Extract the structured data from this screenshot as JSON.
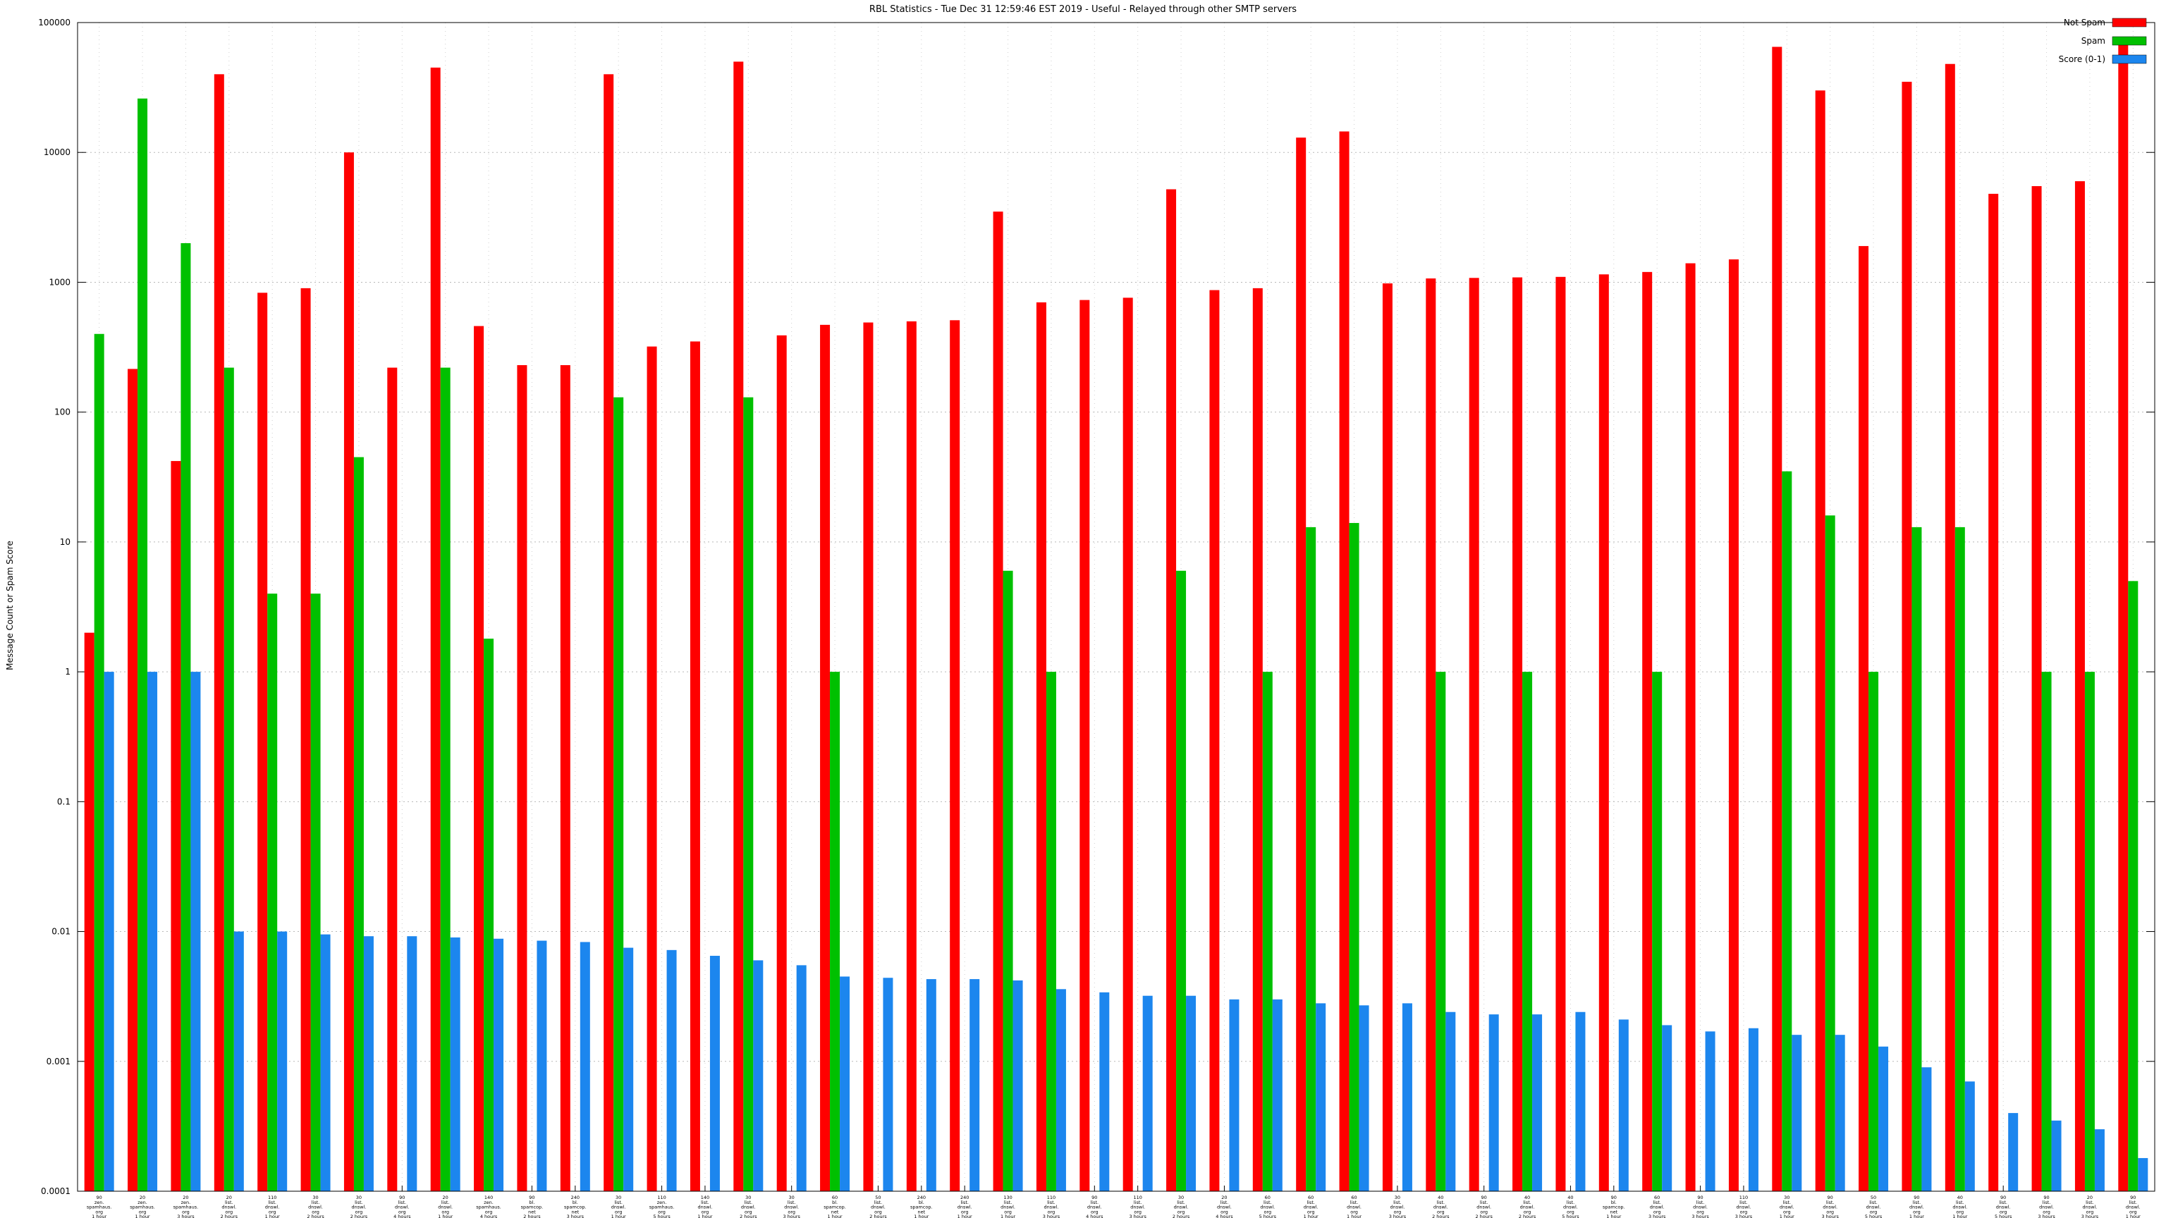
{
  "chart_data": {
    "type": "bar",
    "title": "RBL Statistics - Tue Dec 31 12:59:46 EST 2019 - Useful - Relayed through other SMTP servers",
    "ylabel": "Message Count or Spam Score",
    "yscale": "log",
    "ylim": [
      0.0001,
      100000
    ],
    "ytick_labels": [
      "100000",
      "10000",
      "1000",
      "100",
      "10",
      "1",
      "0.1",
      "0.01",
      "0.001",
      "0.0001"
    ],
    "grid": true,
    "legend_position": "top-right",
    "background": "#ffffff",
    "series": [
      {
        "name": "Not Spam",
        "color": "#ff0000",
        "values": [
          2,
          215,
          42,
          40000,
          830,
          900,
          10000,
          220,
          45000,
          460,
          230,
          230,
          40000,
          320,
          350,
          50000,
          390,
          470,
          490,
          500,
          510,
          3500,
          700,
          730,
          760,
          5200,
          870,
          900,
          13000,
          14500,
          980,
          1070,
          1080,
          1090,
          1100,
          1150,
          1200,
          1400,
          1500,
          65000,
          30000,
          1900,
          35000,
          48000,
          4800,
          5500,
          6000,
          70000
        ]
      },
      {
        "name": "Spam",
        "color": "#00c000",
        "values": [
          400,
          26000,
          2000,
          220,
          4,
          4,
          45,
          0,
          220,
          1.8,
          0,
          0,
          130,
          0,
          0,
          130,
          0,
          1,
          0,
          0,
          0,
          6,
          1,
          0,
          0,
          6,
          0,
          1,
          13,
          14,
          0,
          1,
          0,
          1,
          0,
          0,
          1,
          0,
          0,
          35,
          16,
          1,
          13,
          13,
          0,
          1,
          1,
          5
        ]
      },
      {
        "name": "Score (0-1)",
        "color": "#1c86ee",
        "values": [
          1,
          1,
          1,
          0.01,
          0.01,
          0.0095,
          0.0092,
          0.0092,
          0.009,
          0.0088,
          0.0085,
          0.0083,
          0.0075,
          0.0072,
          0.0065,
          0.006,
          0.0055,
          0.0045,
          0.0044,
          0.0043,
          0.0043,
          0.0042,
          0.0036,
          0.0034,
          0.0032,
          0.0032,
          0.003,
          0.003,
          0.0028,
          0.0027,
          0.0028,
          0.0024,
          0.0023,
          0.0023,
          0.0024,
          0.0021,
          0.0019,
          0.0017,
          0.0018,
          0.0016,
          0.0016,
          0.0013,
          0.0009,
          0.0007,
          0.0004,
          0.00035,
          0.0003,
          0.00018
        ]
      }
    ],
    "categories": [
      [
        "90",
        "zen.",
        "spamhaus.",
        "org",
        "1 hour"
      ],
      [
        "20",
        "zen.",
        "spamhaus.",
        "org",
        "1 hour"
      ],
      [
        "20",
        "zen.",
        "spamhaus.",
        "org",
        "3 hours"
      ],
      [
        "20",
        "list.",
        "dnswl.",
        "org",
        "2 hours"
      ],
      [
        "110",
        "list.",
        "dnswl.",
        "org",
        "1 hour"
      ],
      [
        "30",
        "list.",
        "dnswl.",
        "org",
        "2 hours"
      ],
      [
        "30",
        "list.",
        "dnswl.",
        "org",
        "2 hours"
      ],
      [
        "90",
        "list.",
        "dnswl.",
        "org",
        "4 hours"
      ],
      [
        "20",
        "list.",
        "dnswl.",
        "org",
        "1 hour"
      ],
      [
        "140",
        "zen.",
        "spamhaus.",
        "org",
        "4 hours"
      ],
      [
        "90",
        "bl.",
        "spamcop.",
        "net",
        "2 hours"
      ],
      [
        "240",
        "bl.",
        "spamcop.",
        "net",
        "3 hours"
      ],
      [
        "30",
        "list.",
        "dnswl.",
        "org",
        "1 hour"
      ],
      [
        "110",
        "zen.",
        "spamhaus.",
        "org",
        "5 hours"
      ],
      [
        "140",
        "list.",
        "dnswl.",
        "org",
        "1 hour"
      ],
      [
        "30",
        "list.",
        "dnswl.",
        "org",
        "2 hours"
      ],
      [
        "30",
        "list.",
        "dnswl.",
        "org",
        "3 hours"
      ],
      [
        "60",
        "bl.",
        "spamcop.",
        "net",
        "1 hour"
      ],
      [
        "50",
        "list.",
        "dnswl.",
        "org",
        "2 hours"
      ],
      [
        "240",
        "bl.",
        "spamcop.",
        "net",
        "1 hour"
      ],
      [
        "240",
        "list.",
        "dnswl.",
        "org",
        "1 hour"
      ],
      [
        "130",
        "list.",
        "dnswl.",
        "org",
        "1 hour"
      ],
      [
        "110",
        "list.",
        "dnswl.",
        "org",
        "3 hours"
      ],
      [
        "90",
        "list.",
        "dnswl.",
        "org",
        "4 hours"
      ],
      [
        "110",
        "list.",
        "dnswl.",
        "org",
        "3 hours"
      ],
      [
        "30",
        "list.",
        "dnswl.",
        "org",
        "2 hours"
      ],
      [
        "20",
        "list.",
        "dnswl.",
        "org",
        "4 hours"
      ],
      [
        "60",
        "list.",
        "dnswl.",
        "org",
        "5 hours"
      ],
      [
        "60",
        "list.",
        "dnswl.",
        "org",
        "1 hour"
      ],
      [
        "60",
        "list.",
        "dnswl.",
        "org",
        "1 hour"
      ],
      [
        "30",
        "list.",
        "dnswl.",
        "org",
        "3 hours"
      ],
      [
        "40",
        "list.",
        "dnswl.",
        "org",
        "2 hours"
      ],
      [
        "90",
        "list.",
        "dnswl.",
        "org",
        "2 hours"
      ],
      [
        "40",
        "list.",
        "dnswl.",
        "org",
        "2 hours"
      ],
      [
        "40",
        "list.",
        "dnswl.",
        "org",
        "5 hours"
      ],
      [
        "90",
        "bl.",
        "spamcop.",
        "net",
        "1 hour"
      ],
      [
        "60",
        "list.",
        "dnswl.",
        "org",
        "3 hours"
      ],
      [
        "90",
        "list.",
        "dnswl.",
        "org",
        "3 hours"
      ],
      [
        "110",
        "list.",
        "dnswl.",
        "org",
        "3 hours"
      ],
      [
        "30",
        "list.",
        "dnswl.",
        "org",
        "1 hour"
      ],
      [
        "90",
        "list.",
        "dnswl.",
        "org",
        "3 hours"
      ],
      [
        "50",
        "list.",
        "dnswl.",
        "org",
        "5 hours"
      ],
      [
        "90",
        "list.",
        "dnswl.",
        "org",
        "1 hour"
      ],
      [
        "40",
        "list.",
        "dnswl.",
        "org",
        "1 hour"
      ],
      [
        "90",
        "list.",
        "dnswl.",
        "org",
        "5 hours"
      ],
      [
        "90",
        "list.",
        "dnswl.",
        "org",
        "3 hours"
      ],
      [
        "20",
        "list.",
        "dnswl.",
        "org",
        "3 hours"
      ],
      [
        "90",
        "list.",
        "dnswl.",
        "org",
        "1 hour"
      ]
    ]
  }
}
